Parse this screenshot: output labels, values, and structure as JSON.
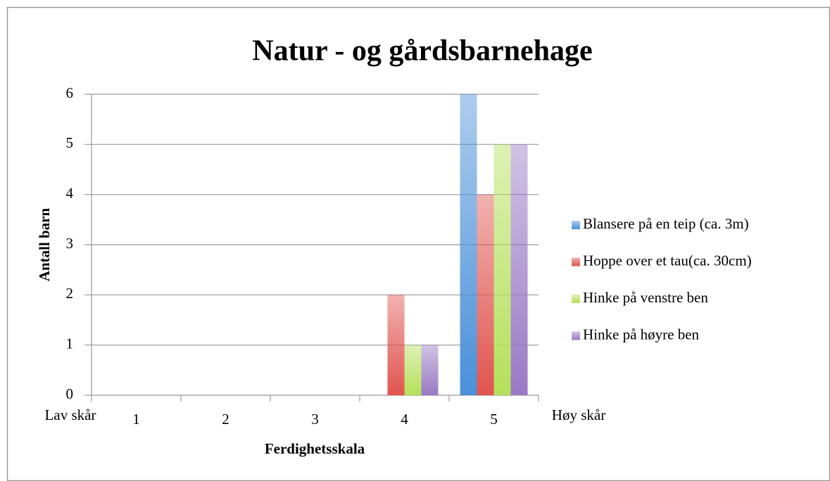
{
  "chart_data": {
    "type": "bar",
    "title": "Natur - og gårdsbarnehage",
    "y_label": "Antall barn",
    "x_label": "Ferdighetsskala",
    "annotations": [
      "Lav skår",
      "Høy skår"
    ],
    "categories": [
      "1",
      "2",
      "3",
      "4",
      "5"
    ],
    "series": [
      {
        "name": "Blansere på en teip (ca. 3m)",
        "color": "#4a90d9",
        "values": [
          0,
          0,
          0,
          0,
          6
        ]
      },
      {
        "name": "Hoppe over et tau(ca. 30cm)",
        "color": "#e0544f",
        "values": [
          0,
          0,
          0,
          2,
          4
        ]
      },
      {
        "name": "Hinke på venstre ben",
        "color": "#b5e05a",
        "values": [
          0,
          0,
          0,
          1,
          5
        ]
      },
      {
        "name": "Hinke på høyre ben",
        "color": "#9a79c4",
        "values": [
          0,
          0,
          0,
          1,
          5
        ]
      }
    ],
    "ylim": [
      0,
      6
    ],
    "yticks": [
      0,
      1,
      2,
      3,
      4,
      5,
      6
    ],
    "grid": true,
    "legend": "right"
  }
}
